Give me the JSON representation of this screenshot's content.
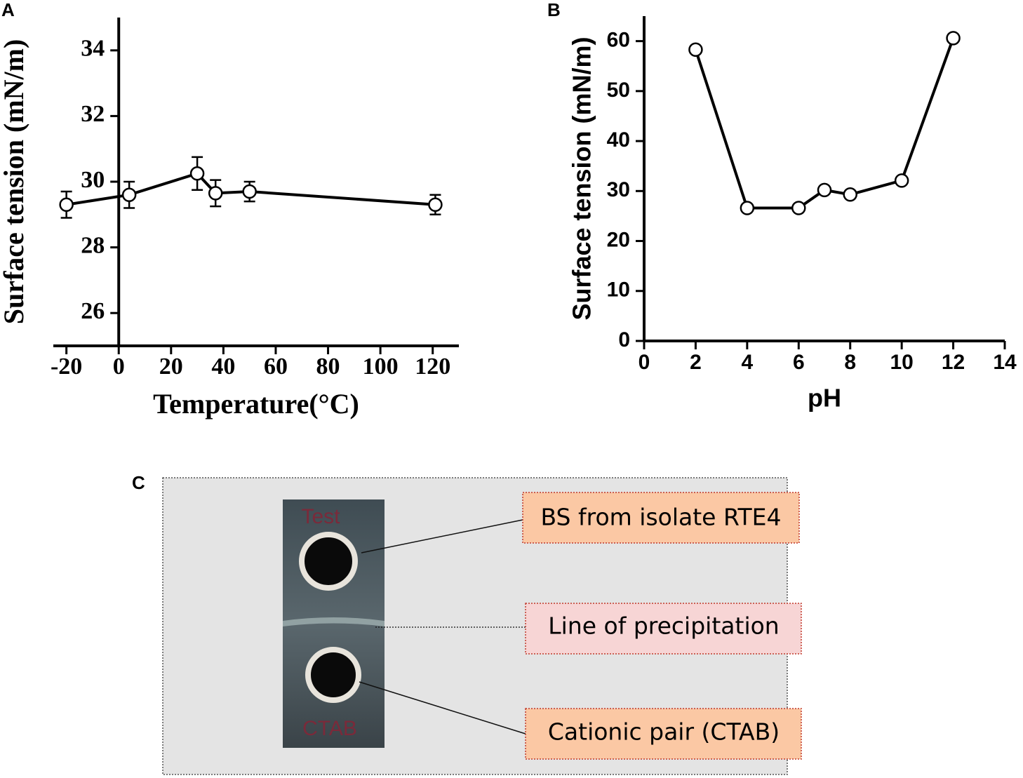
{
  "chart_data": [
    {
      "type": "line",
      "panel": "A",
      "xlabel": "Temperature(°C)",
      "ylabel": "Surface tension (mN/m)",
      "x": [
        -20,
        4,
        30,
        37,
        50,
        121
      ],
      "series": [
        {
          "color": "#000000",
          "values": [
            29.3,
            29.6,
            30.25,
            29.65,
            29.7,
            29.3
          ],
          "errors": [
            0.4,
            0.4,
            0.5,
            0.4,
            0.3,
            0.3
          ]
        }
      ],
      "xlim": [
        -25,
        130
      ],
      "xticks": [
        -20,
        0,
        20,
        40,
        60,
        80,
        100,
        120
      ],
      "ylim": [
        25,
        35
      ],
      "yticks": [
        26,
        28,
        30,
        32,
        34
      ]
    },
    {
      "type": "line",
      "panel": "B",
      "xlabel": "pH",
      "ylabel": "Surface tension (mN/m)",
      "x": [
        2,
        4,
        6,
        7,
        8,
        10,
        12
      ],
      "series": [
        {
          "color": "#000000",
          "values": [
            58.3,
            26.6,
            26.6,
            30.2,
            29.3,
            32.1,
            60.6
          ]
        }
      ],
      "xlim": [
        0,
        14
      ],
      "xticks": [
        0,
        2,
        4,
        6,
        8,
        10,
        12,
        14
      ],
      "ylim": [
        0,
        65
      ],
      "yticks": [
        0,
        10,
        20,
        30,
        40,
        50,
        60
      ]
    }
  ],
  "panel_c": {
    "label": "C",
    "photo_texts": [
      "Test",
      "CTAB"
    ],
    "annotations": [
      "BS from isolate RTE4",
      "Line of precipitation",
      "Cationic pair (CTAB)"
    ]
  }
}
